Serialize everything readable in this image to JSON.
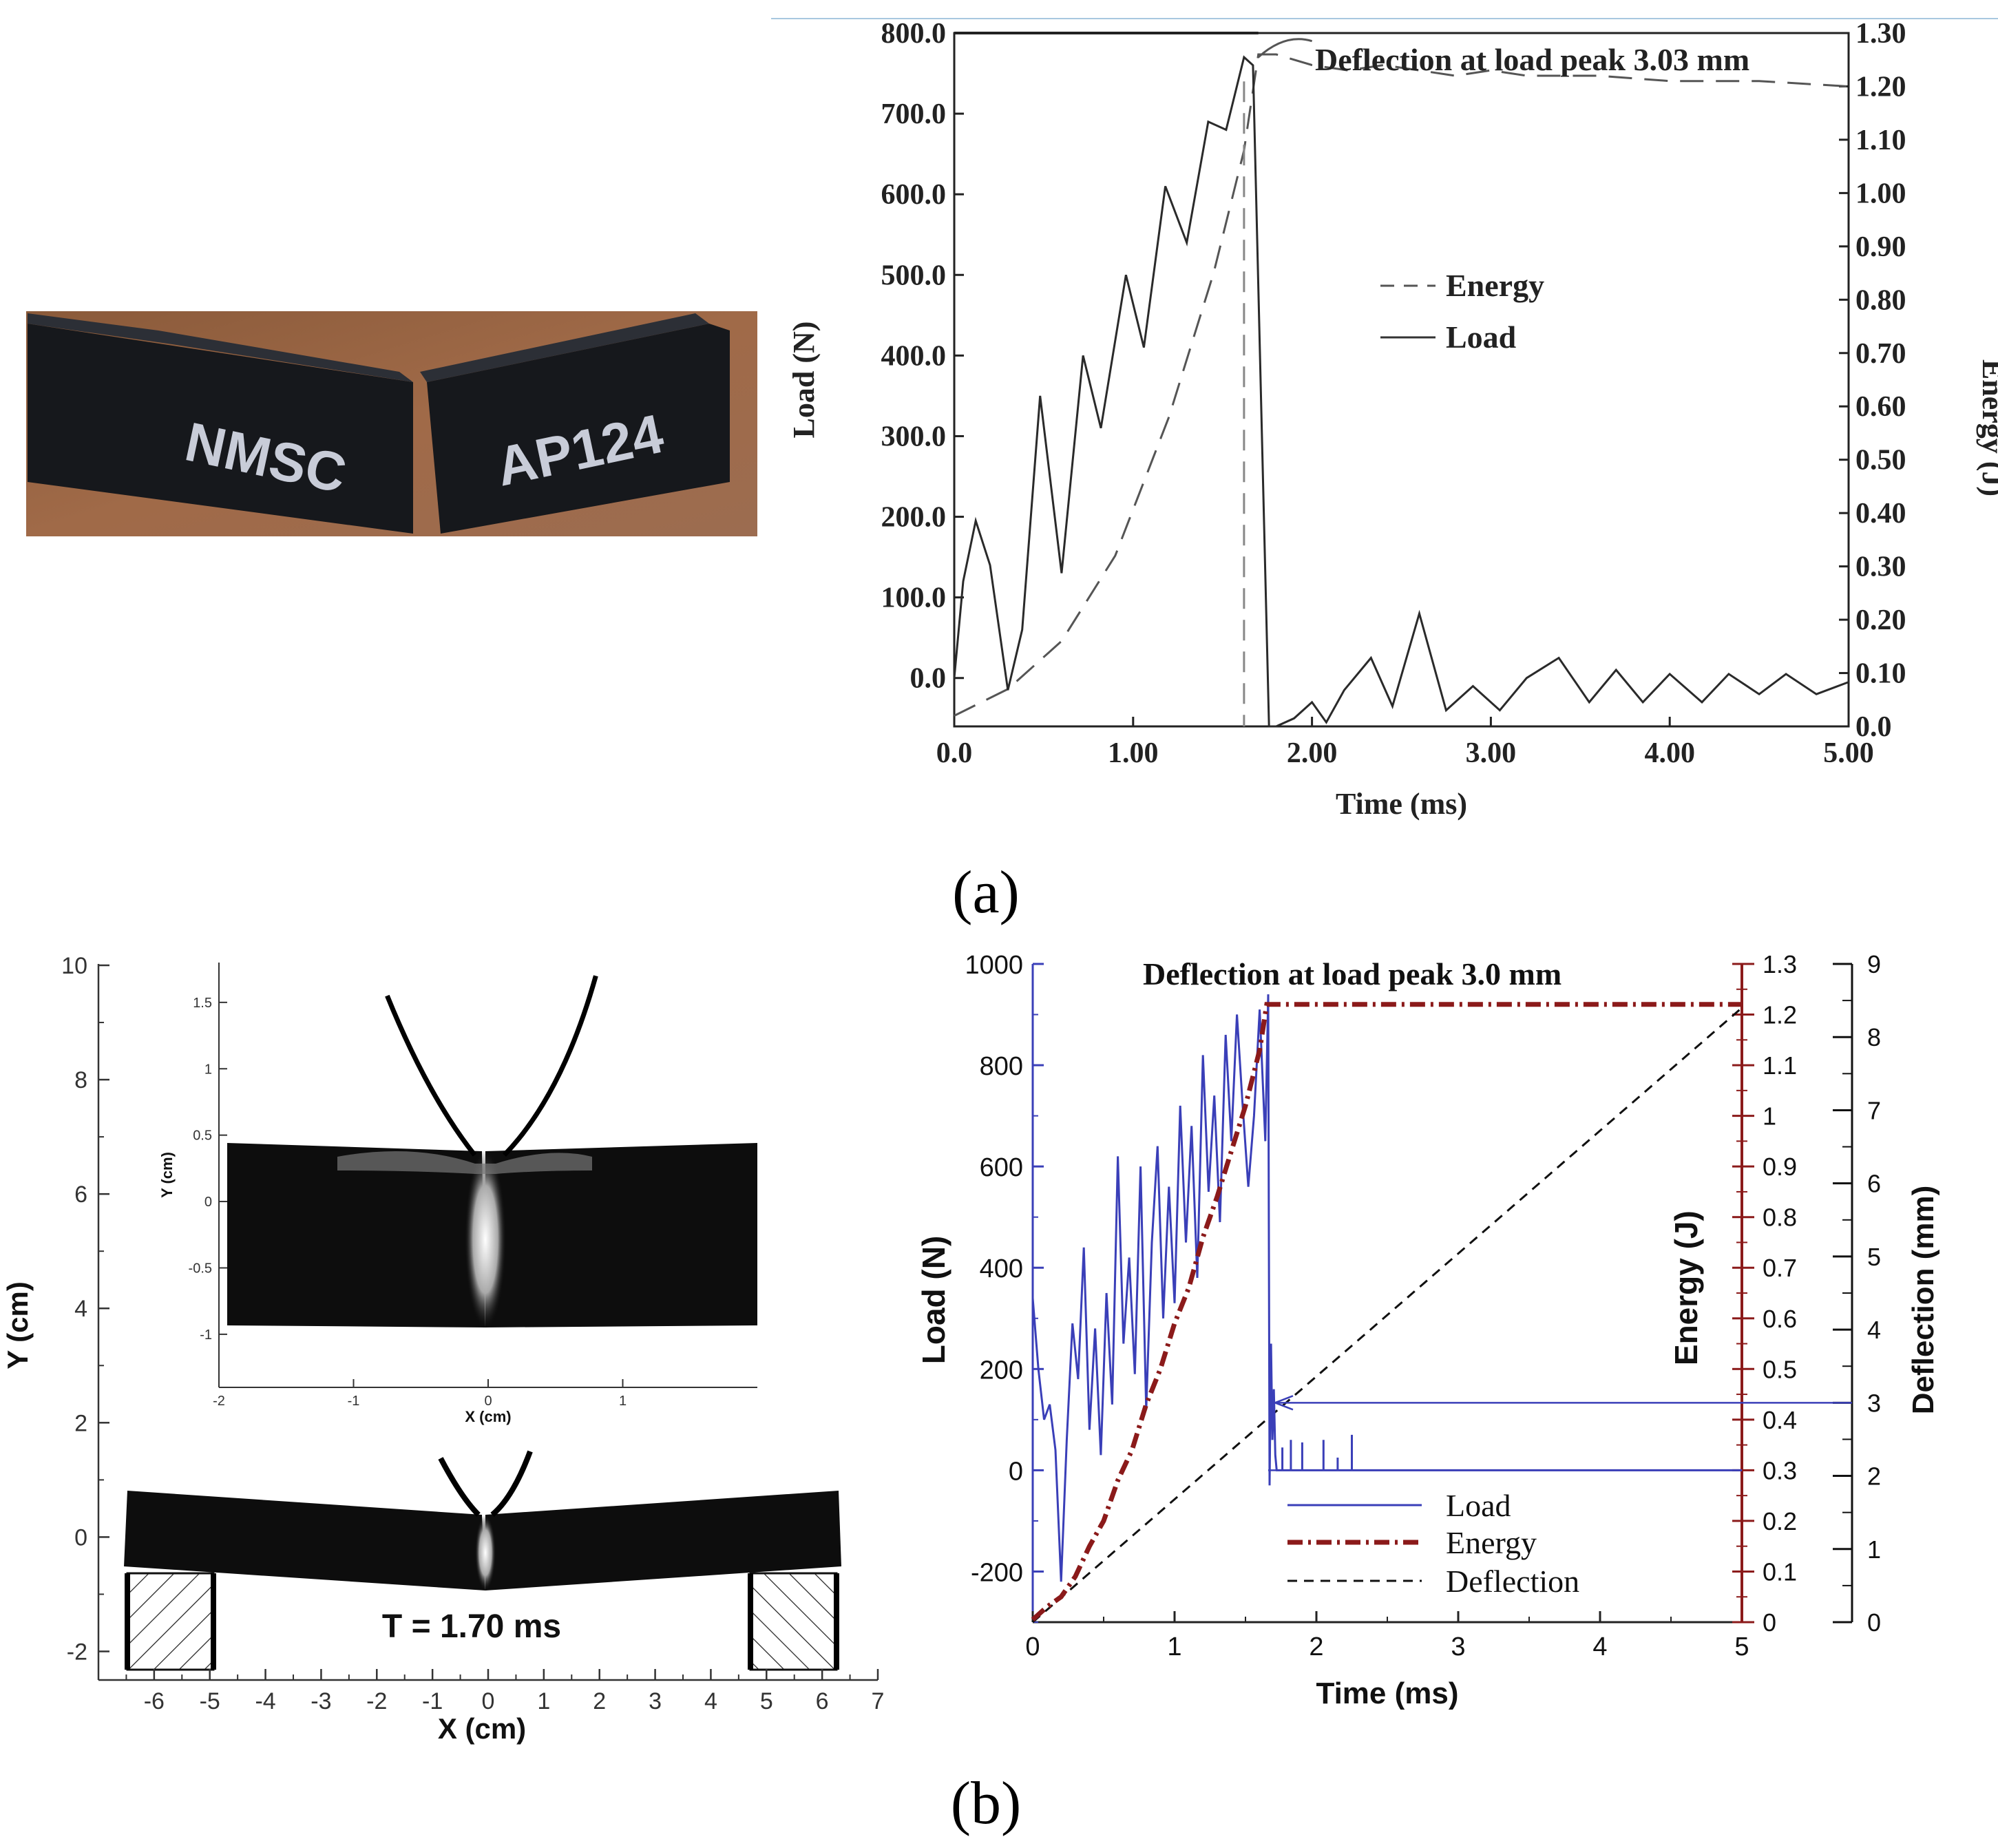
{
  "photo": {
    "label_left": "NMSC",
    "label_right": "AP124"
  },
  "panel_labels": [
    "(a)",
    "(b)"
  ],
  "colors": {
    "blue": "#3a3fb8",
    "dark_red": "#8b1a1a",
    "gray_ink": "#3a3a3a"
  },
  "chart_data": [
    {
      "type": "line",
      "panel": "(a) experimental",
      "xlabel": "Time (ms)",
      "ylabel": "Load (N)",
      "y2label": "Energy (J)",
      "xlim": [
        0,
        5
      ],
      "ylim": [
        -60,
        800
      ],
      "y2lim": [
        0,
        1.3
      ],
      "x_ticks": [
        "0.0",
        "1.00",
        "2.00",
        "3.00",
        "4.00",
        "5.00"
      ],
      "y_ticks": [
        "0.0",
        "100.0",
        "200.0",
        "300.0",
        "400.0",
        "500.0",
        "600.0",
        "700.0",
        "800.0"
      ],
      "y2_ticks": [
        "0.0",
        "0.10",
        "0.20",
        "0.30",
        "0.40",
        "0.50",
        "0.60",
        "0.70",
        "0.80",
        "0.90",
        "1.00",
        "1.10",
        "1.20",
        "1.30"
      ],
      "annotation": "Deflection at load peak 3.03 mm",
      "legend": [
        "Energy",
        "Load"
      ],
      "series": [
        {
          "name": "Load",
          "axis": "left",
          "x": [
            0,
            0.05,
            0.12,
            0.2,
            0.3,
            0.38,
            0.48,
            0.6,
            0.72,
            0.82,
            0.96,
            1.06,
            1.18,
            1.3,
            1.42,
            1.52,
            1.62,
            1.67,
            1.72,
            1.76,
            1.8,
            1.9,
            2.0,
            2.08,
            2.18,
            2.33,
            2.45,
            2.6,
            2.75,
            2.9,
            3.05,
            3.2,
            3.38,
            3.55,
            3.7,
            3.85,
            4.0,
            4.18,
            4.33,
            4.5,
            4.65,
            4.82,
            5.0
          ],
          "y": [
            0,
            120,
            195,
            140,
            -15,
            60,
            350,
            130,
            400,
            310,
            500,
            410,
            610,
            540,
            690,
            680,
            770,
            760,
            300,
            -60,
            -60,
            -50,
            -30,
            -55,
            -15,
            25,
            -35,
            80,
            -40,
            -10,
            -40,
            0,
            25,
            -30,
            10,
            -30,
            5,
            -30,
            5,
            -20,
            5,
            -20,
            -5
          ]
        },
        {
          "name": "Energy",
          "axis": "right",
          "x": [
            0,
            0.3,
            0.6,
            0.9,
            1.2,
            1.45,
            1.62,
            1.7,
            1.8,
            2.0,
            2.2,
            2.4,
            2.6,
            2.8,
            3.0,
            3.2,
            3.6,
            4.0,
            4.5,
            5.0
          ],
          "y": [
            0.02,
            0.07,
            0.16,
            0.32,
            0.58,
            0.85,
            1.08,
            1.26,
            1.26,
            1.24,
            1.23,
            1.24,
            1.23,
            1.22,
            1.23,
            1.22,
            1.22,
            1.21,
            1.21,
            1.2
          ]
        }
      ]
    },
    {
      "type": "scatter",
      "panel": "(b) simulation mesh",
      "xlabel": "X (cm)",
      "ylabel": "Y (cm)",
      "xlim": [
        -7,
        7
      ],
      "ylim": [
        -2.5,
        10
      ],
      "x_ticks": [
        "-6",
        "-5",
        "-4",
        "-3",
        "-2",
        "-1",
        "0",
        "1",
        "2",
        "3",
        "4",
        "5",
        "6",
        "7"
      ],
      "y_ticks": [
        "-2",
        "0",
        "2",
        "4",
        "6",
        "8",
        "10"
      ],
      "annotation": "T = 1.70 ms",
      "inset": {
        "xlabel": "X (cm)",
        "ylabel": "Y (cm)",
        "xlim": [
          -2,
          2
        ],
        "ylim": [
          -1.4,
          1.8
        ],
        "x_ticks": [
          "-2",
          "-1",
          "0",
          "1"
        ],
        "y_ticks": [
          "-1",
          "-0.5",
          "0",
          "0.5",
          "1",
          "1.5"
        ]
      }
    },
    {
      "type": "line",
      "panel": "(b) simulation curves",
      "xlabel": "Time (ms)",
      "ylabel": "Load (N)",
      "y2label": "Energy (J)",
      "y3label": "Deflection  (mm)",
      "xlim": [
        0,
        5
      ],
      "ylim": [
        -300,
        1000
      ],
      "y2lim": [
        0,
        1.3
      ],
      "y3lim": [
        0,
        9
      ],
      "x_ticks": [
        "0",
        "1",
        "2",
        "3",
        "4",
        "5"
      ],
      "y_ticks": [
        "-200",
        "0",
        "200",
        "400",
        "600",
        "800",
        "1000"
      ],
      "y2_ticks": [
        "0",
        "0.1",
        "0.2",
        "0.3",
        "0.4",
        "0.5",
        "0.6",
        "0.7",
        "0.8",
        "0.9",
        "1",
        "1.1",
        "1.2",
        "1.3"
      ],
      "y3_ticks": [
        "0",
        "1",
        "2",
        "3",
        "4",
        "5",
        "6",
        "7",
        "8",
        "9"
      ],
      "annotation": "Deflection at load peak 3.0 mm",
      "legend": [
        "Load",
        "Energy",
        "Deflection"
      ],
      "series": [
        {
          "name": "Load",
          "axis": "left",
          "x": [
            0,
            0.04,
            0.08,
            0.12,
            0.16,
            0.2,
            0.24,
            0.28,
            0.32,
            0.36,
            0.4,
            0.44,
            0.48,
            0.52,
            0.56,
            0.6,
            0.64,
            0.68,
            0.72,
            0.76,
            0.8,
            0.84,
            0.88,
            0.92,
            0.96,
            1.0,
            1.04,
            1.08,
            1.12,
            1.16,
            1.2,
            1.24,
            1.28,
            1.32,
            1.36,
            1.4,
            1.44,
            1.48,
            1.52,
            1.56,
            1.6,
            1.64,
            1.66,
            1.67,
            1.68,
            1.69,
            1.7,
            1.71,
            1.72,
            5.0
          ],
          "y": [
            340,
            200,
            100,
            130,
            40,
            -220,
            60,
            290,
            180,
            440,
            80,
            280,
            30,
            350,
            130,
            620,
            250,
            420,
            190,
            600,
            120,
            450,
            640,
            300,
            560,
            330,
            720,
            450,
            680,
            380,
            820,
            550,
            740,
            490,
            860,
            650,
            900,
            720,
            560,
            700,
            910,
            650,
            940,
            -30,
            250,
            60,
            160,
            30,
            0,
            0
          ]
        },
        {
          "name": "Energy",
          "axis": "right",
          "x": [
            0,
            0.1,
            0.2,
            0.3,
            0.4,
            0.5,
            0.6,
            0.7,
            0.8,
            0.9,
            1.0,
            1.1,
            1.2,
            1.3,
            1.4,
            1.5,
            1.6,
            1.65,
            5.0
          ],
          "y": [
            0.005,
            0.03,
            0.05,
            0.09,
            0.15,
            0.2,
            0.28,
            0.34,
            0.43,
            0.5,
            0.59,
            0.66,
            0.76,
            0.84,
            0.93,
            1.02,
            1.13,
            1.22,
            1.22
          ]
        },
        {
          "name": "Deflection",
          "axis": "right2",
          "x": [
            0,
            5.0
          ],
          "y": [
            0,
            8.4
          ]
        }
      ],
      "peak_marker": {
        "x": 1.66,
        "deflection": 3.0
      }
    }
  ]
}
